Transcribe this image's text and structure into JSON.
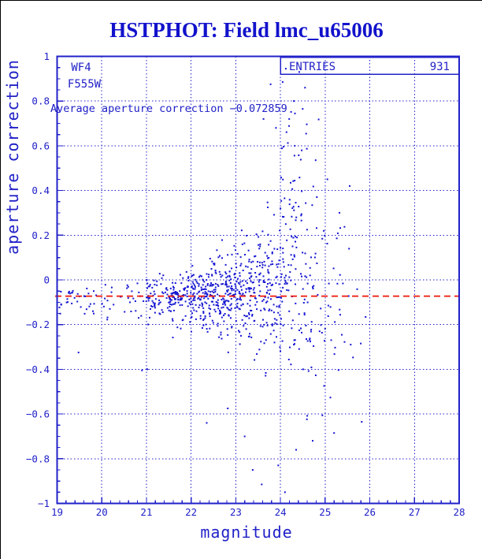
{
  "header": {
    "title": "HSTPHOT: Field lmc_u65006"
  },
  "colors": {
    "axis_blue": "#2121c8",
    "point_blue": "#1616d2",
    "title_blue": "#1212cc",
    "average_line_red": "#ed1509",
    "background": "#ffffff"
  },
  "chart_data": {
    "type": "scatter",
    "title": "HSTPHOT: Field lmc_u65006",
    "xlabel": "magnitude",
    "ylabel": "aperture correction",
    "xlim": [
      19,
      28
    ],
    "ylim": [
      -1,
      1
    ],
    "x_tick_values": [
      19,
      20,
      21,
      22,
      23,
      24,
      25,
      26,
      27,
      28
    ],
    "x_tick_labels": [
      "19",
      "20",
      "21",
      "22",
      "23",
      "24",
      "25",
      "26",
      "27",
      "28"
    ],
    "y_tick_values": [
      1,
      0.8,
      0.6,
      0.4,
      0.2,
      0,
      -0.2,
      -0.4,
      -0.6,
      -0.8,
      -1
    ],
    "y_tick_labels": [
      "1",
      "0.8",
      "0.6",
      "0.4",
      "0.2",
      "0",
      "−0.2",
      "−0.4",
      "−0.6",
      "−0.8",
      "−1"
    ],
    "x_minor_step": 0.2,
    "y_minor_step": 0.05,
    "grid": true,
    "grid_x": [
      20,
      21,
      22,
      23,
      24,
      25,
      26,
      27
    ],
    "grid_y": [
      0.8,
      0.6,
      0.4,
      0.2,
      0,
      -0.2,
      -0.4,
      -0.6,
      -0.8
    ],
    "detector": "WF4",
    "filter_name": "F555W",
    "annotation": "Average aperture correction −0.072859",
    "average_value": -0.072859,
    "stats_box": {
      "label": "ENTRIES",
      "value": "931"
    },
    "n_entries": 931,
    "marker": {
      "shape": "square",
      "size": 2
    },
    "points_note": "931 points estimated from pixels: dense band near y=-0.07 for mag 19-23, spread widening toward faint magnitudes; bins = [mag0, mag1, count, mean, sigma, ymin, ymax]",
    "seed": 20251113,
    "point_bins": [
      [
        19.0,
        19.5,
        18,
        -0.088,
        0.032,
        -0.17,
        -0.02
      ],
      [
        19.5,
        20.0,
        15,
        -0.09,
        0.04,
        -0.33,
        -0.02
      ],
      [
        20.0,
        20.5,
        12,
        -0.082,
        0.04,
        -0.2,
        -0.01
      ],
      [
        20.5,
        21.0,
        18,
        -0.085,
        0.05,
        -0.41,
        0.0
      ],
      [
        21.0,
        21.5,
        58,
        -0.08,
        0.05,
        -0.3,
        0.03
      ],
      [
        21.5,
        22.0,
        95,
        -0.078,
        0.055,
        -0.36,
        0.05
      ],
      [
        22.0,
        22.5,
        125,
        -0.07,
        0.065,
        -0.45,
        0.14
      ],
      [
        22.5,
        23.0,
        135,
        -0.062,
        0.08,
        -0.55,
        0.22
      ],
      [
        23.0,
        23.5,
        120,
        -0.045,
        0.11,
        -0.65,
        0.35
      ],
      [
        23.5,
        24.0,
        115,
        -0.02,
        0.16,
        -0.92,
        0.6
      ],
      [
        24.0,
        24.5,
        95,
        0.04,
        0.26,
        -0.95,
        0.9
      ],
      [
        24.5,
        25.0,
        58,
        0.0,
        0.3,
        -0.85,
        0.92
      ],
      [
        25.0,
        25.6,
        26,
        -0.07,
        0.22,
        -0.7,
        0.45
      ],
      [
        25.6,
        25.95,
        4,
        -0.3,
        0.25,
        -0.66,
        0.1
      ]
    ],
    "cluster_high": {
      "x0": 24.05,
      "x1": 24.6,
      "y0": 0.52,
      "y1": 0.78,
      "n": 12
    },
    "outlier_points": [
      [
        24.42,
        0.93
      ],
      [
        24.12,
        0.945
      ],
      [
        24.05,
        0.885
      ],
      [
        23.78,
        0.875
      ],
      [
        24.55,
        0.86
      ],
      [
        24.3,
        0.8
      ],
      [
        23.62,
        0.72
      ],
      [
        23.9,
        0.68
      ],
      [
        25.05,
        0.45
      ],
      [
        25.32,
        0.3
      ],
      [
        25.55,
        0.42
      ],
      [
        19.48,
        -0.325
      ],
      [
        20.9,
        -0.405
      ],
      [
        21.02,
        -0.4
      ],
      [
        22.35,
        -0.64
      ],
      [
        22.82,
        -0.575
      ],
      [
        23.2,
        -0.7
      ],
      [
        23.38,
        -0.85
      ],
      [
        23.58,
        -0.915
      ],
      [
        23.95,
        -0.83
      ],
      [
        24.1,
        -0.95
      ],
      [
        24.35,
        -0.76
      ],
      [
        24.72,
        -0.72
      ],
      [
        25.2,
        -0.685
      ],
      [
        25.82,
        -0.635
      ]
    ]
  }
}
